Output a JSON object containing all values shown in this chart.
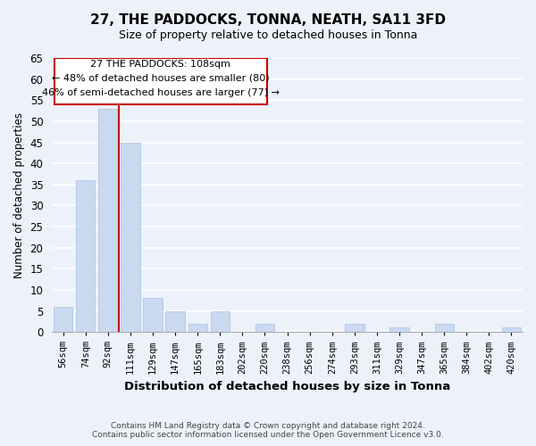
{
  "title": "27, THE PADDOCKS, TONNA, NEATH, SA11 3FD",
  "subtitle": "Size of property relative to detached houses in Tonna",
  "xlabel": "Distribution of detached houses by size in Tonna",
  "ylabel": "Number of detached properties",
  "bar_labels": [
    "56sqm",
    "74sqm",
    "92sqm",
    "111sqm",
    "129sqm",
    "147sqm",
    "165sqm",
    "183sqm",
    "202sqm",
    "220sqm",
    "238sqm",
    "256sqm",
    "274sqm",
    "293sqm",
    "311sqm",
    "329sqm",
    "347sqm",
    "365sqm",
    "384sqm",
    "402sqm",
    "420sqm"
  ],
  "bar_values": [
    6,
    36,
    53,
    45,
    8,
    5,
    2,
    5,
    0,
    2,
    0,
    0,
    0,
    2,
    0,
    1,
    0,
    2,
    0,
    0,
    1
  ],
  "bar_color": "#c9d9f0",
  "bar_edge_color": "#aabfe0",
  "vline_color": "#cc0000",
  "annotation_title": "27 THE PADDOCKS: 108sqm",
  "annotation_line1": "← 48% of detached houses are smaller (80)",
  "annotation_line2": "46% of semi-detached houses are larger (77) →",
  "annotation_box_color": "white",
  "annotation_box_edge": "#cc0000",
  "ylim": [
    0,
    65
  ],
  "yticks": [
    0,
    5,
    10,
    15,
    20,
    25,
    30,
    35,
    40,
    45,
    50,
    55,
    60,
    65
  ],
  "footer_line1": "Contains HM Land Registry data © Crown copyright and database right 2024.",
  "footer_line2": "Contains public sector information licensed under the Open Government Licence v3.0.",
  "background_color": "#edf2fa",
  "grid_color": "white"
}
